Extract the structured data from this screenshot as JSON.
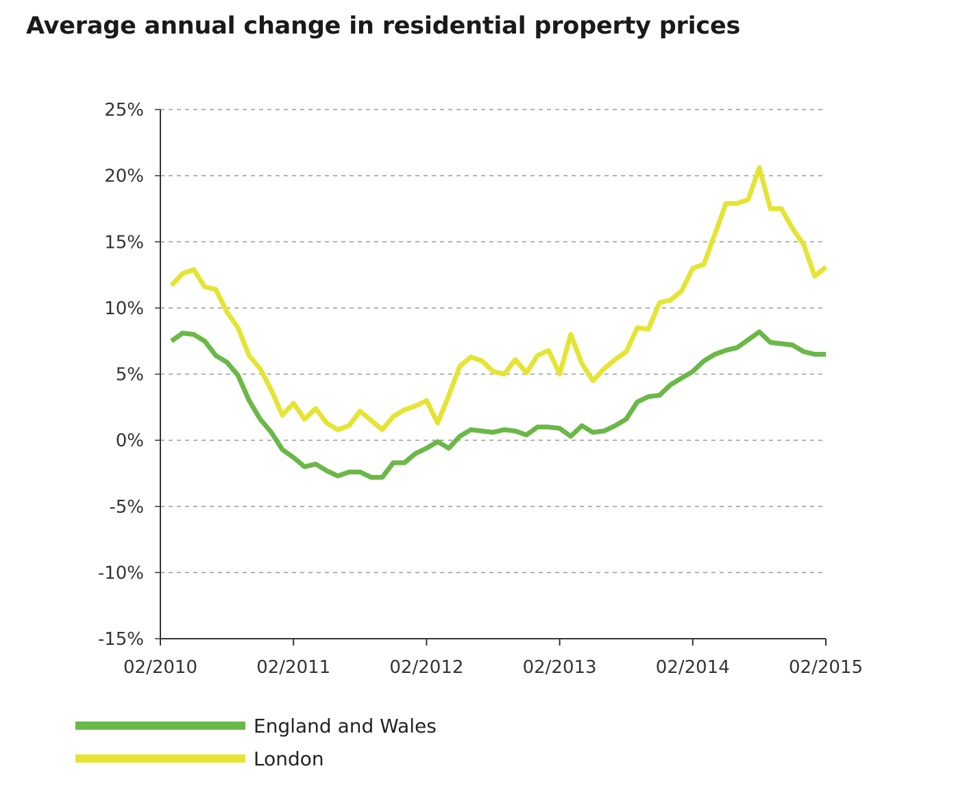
{
  "chart_data": {
    "type": "line",
    "title": "Average annual change in residential property prices",
    "xlabel": "",
    "ylabel": "",
    "x_ticks": [
      "02/2010",
      "02/2011",
      "02/2012",
      "02/2013",
      "02/2014",
      "02/2015"
    ],
    "x_range": [
      "02/2010",
      "02/2015"
    ],
    "y_ticks": [
      "25%",
      "20%",
      "15%",
      "10%",
      "5%",
      "0%",
      "-5%",
      "-10%",
      "-15%"
    ],
    "y_tick_values": [
      25,
      20,
      15,
      10,
      5,
      0,
      -5,
      -10,
      -15
    ],
    "ylim": [
      -15,
      25
    ],
    "grid": "horizontal dashed",
    "legend_position": "bottom-left",
    "x": [
      "03/2010",
      "04/2010",
      "05/2010",
      "06/2010",
      "07/2010",
      "08/2010",
      "09/2010",
      "10/2010",
      "11/2010",
      "12/2010",
      "01/2011",
      "02/2011",
      "03/2011",
      "04/2011",
      "05/2011",
      "06/2011",
      "07/2011",
      "08/2011",
      "09/2011",
      "10/2011",
      "11/2011",
      "12/2011",
      "01/2012",
      "02/2012",
      "03/2012",
      "04/2012",
      "05/2012",
      "06/2012",
      "07/2012",
      "08/2012",
      "09/2012",
      "10/2012",
      "11/2012",
      "12/2012",
      "01/2013",
      "02/2013",
      "03/2013",
      "04/2013",
      "05/2013",
      "06/2013",
      "07/2013",
      "08/2013",
      "09/2013",
      "10/2013",
      "11/2013",
      "12/2013",
      "01/2014",
      "02/2014",
      "03/2014",
      "04/2014",
      "05/2014",
      "06/2014",
      "07/2014",
      "08/2014",
      "09/2014",
      "10/2014",
      "11/2014",
      "12/2014",
      "01/2015",
      "02/2015"
    ],
    "series": [
      {
        "name": "England and Wales",
        "color": "#6ab847",
        "values": [
          7.5,
          8.1,
          8.0,
          7.5,
          6.4,
          5.9,
          4.9,
          3.0,
          1.6,
          0.6,
          -0.7,
          -1.3,
          -2.0,
          -1.8,
          -2.3,
          -2.7,
          -2.4,
          -2.4,
          -2.8,
          -2.8,
          -1.7,
          -1.7,
          -1.0,
          -0.6,
          -0.1,
          -0.6,
          0.3,
          0.8,
          0.7,
          0.6,
          0.8,
          0.7,
          0.4,
          1.0,
          1.0,
          0.9,
          0.3,
          1.1,
          0.6,
          0.7,
          1.1,
          1.6,
          2.9,
          3.3,
          3.4,
          4.2,
          4.7,
          5.2,
          6.0,
          6.5,
          6.8,
          7.0,
          7.6,
          8.2,
          7.4,
          7.3,
          7.2,
          6.7,
          6.5,
          6.5
        ]
      },
      {
        "name": "London",
        "color": "#e4e533",
        "values": [
          11.7,
          12.6,
          12.9,
          11.6,
          11.4,
          9.7,
          8.5,
          6.4,
          5.4,
          3.8,
          1.9,
          2.8,
          1.6,
          2.4,
          1.3,
          0.8,
          1.1,
          2.2,
          1.5,
          0.8,
          1.8,
          2.3,
          2.6,
          3.0,
          1.3,
          3.4,
          5.6,
          6.3,
          6.0,
          5.2,
          5.0,
          6.1,
          5.1,
          6.4,
          6.8,
          5.0,
          8.0,
          5.8,
          4.5,
          5.4,
          6.1,
          6.7,
          8.5,
          8.4,
          10.4,
          10.6,
          11.3,
          13.0,
          13.3,
          15.6,
          17.9,
          17.9,
          18.2,
          20.6,
          17.5,
          17.5,
          16.0,
          14.8,
          12.4,
          13.1
        ]
      }
    ]
  }
}
